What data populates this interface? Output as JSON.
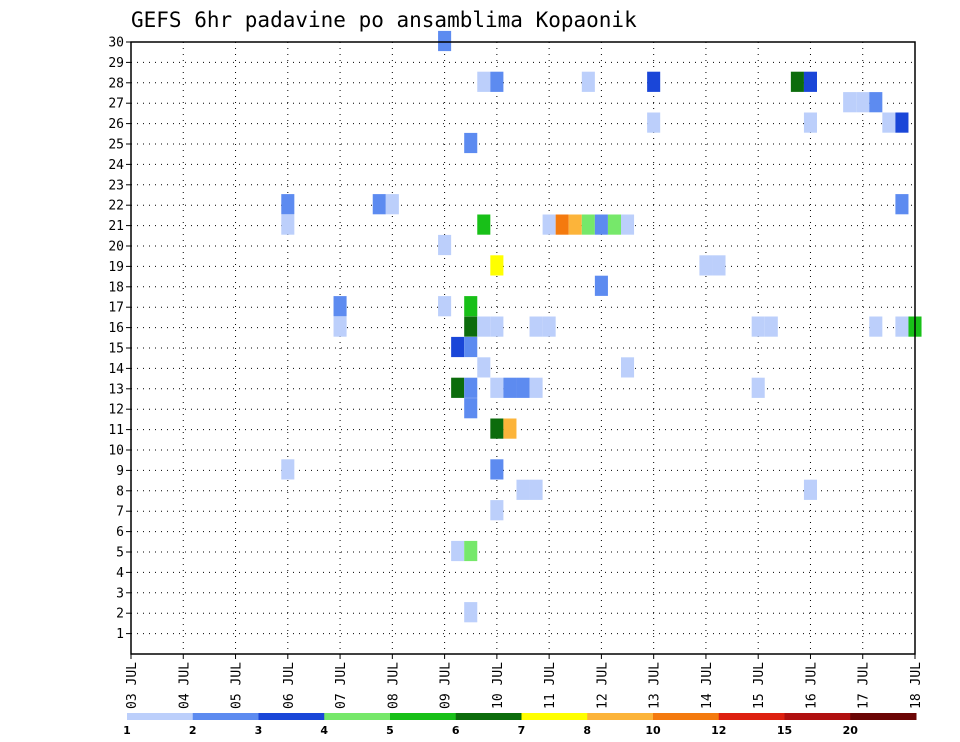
{
  "chart_data": {
    "type": "heatmap",
    "title": "GEFS 6hr padavine po ansamblima Kopaonik",
    "xlabel": "",
    "ylabel": "",
    "x_tick_labels": [
      "03 JUL",
      "04 JUL",
      "05 JUL",
      "06 JUL",
      "07 JUL",
      "08 JUL",
      "09 JUL",
      "10 JUL",
      "11 JUL",
      "12 JUL",
      "13 JUL",
      "14 JUL",
      "15 JUL",
      "16 JUL",
      "17 JUL",
      "18 JUL"
    ],
    "x_range_days": [
      0,
      15
    ],
    "y_tick_labels": [
      "1",
      "2",
      "3",
      "4",
      "5",
      "6",
      "7",
      "8",
      "9",
      "10",
      "11",
      "12",
      "13",
      "14",
      "15",
      "16",
      "17",
      "18",
      "19",
      "20",
      "21",
      "22",
      "23",
      "24",
      "25",
      "26",
      "27",
      "28",
      "29",
      "30"
    ],
    "y_range": [
      0,
      30
    ],
    "grid": true,
    "legend_placement": "bottom",
    "legend_levels": [
      "1",
      "2",
      "3",
      "4",
      "5",
      "6",
      "7",
      "8",
      "10",
      "12",
      "15",
      "20"
    ],
    "legend_colors": [
      "#bccffb",
      "#5d8bf0",
      "#1a46d8",
      "#76e86a",
      "#18c018",
      "#0c6c0c",
      "#ffff00",
      "#fcb43a",
      "#f47a0e",
      "#dd2010",
      "#b01010",
      "#6b0606"
    ],
    "cells": [
      {
        "day": 6.0,
        "member": 30,
        "level": 2
      },
      {
        "day": 6.75,
        "member": 28,
        "level": 1
      },
      {
        "day": 7.0,
        "member": 28,
        "level": 2
      },
      {
        "day": 8.75,
        "member": 28,
        "level": 1
      },
      {
        "day": 10.0,
        "member": 28,
        "level": 3
      },
      {
        "day": 12.75,
        "member": 28,
        "level": 6
      },
      {
        "day": 13.0,
        "member": 28,
        "level": 3
      },
      {
        "day": 13.75,
        "member": 27,
        "level": 1
      },
      {
        "day": 14.0,
        "member": 27,
        "level": 1
      },
      {
        "day": 14.25,
        "member": 27,
        "level": 2
      },
      {
        "day": 10.0,
        "member": 26,
        "level": 1
      },
      {
        "day": 13.0,
        "member": 26,
        "level": 1
      },
      {
        "day": 14.5,
        "member": 26,
        "level": 1
      },
      {
        "day": 14.75,
        "member": 26,
        "level": 3
      },
      {
        "day": 6.5,
        "member": 25,
        "level": 2
      },
      {
        "day": 3.0,
        "member": 22,
        "level": 2
      },
      {
        "day": 4.75,
        "member": 22,
        "level": 2
      },
      {
        "day": 5.0,
        "member": 22,
        "level": 1
      },
      {
        "day": 14.75,
        "member": 22,
        "level": 2
      },
      {
        "day": 3.0,
        "member": 21,
        "level": 1
      },
      {
        "day": 6.75,
        "member": 21,
        "level": 5
      },
      {
        "day": 8.0,
        "member": 21,
        "level": 1
      },
      {
        "day": 8.25,
        "member": 21,
        "level": 9
      },
      {
        "day": 8.5,
        "member": 21,
        "level": 8
      },
      {
        "day": 8.75,
        "member": 21,
        "level": 4
      },
      {
        "day": 9.0,
        "member": 21,
        "level": 2
      },
      {
        "day": 9.25,
        "member": 21,
        "level": 4
      },
      {
        "day": 9.5,
        "member": 21,
        "level": 1
      },
      {
        "day": 6.0,
        "member": 20,
        "level": 1
      },
      {
        "day": 7.0,
        "member": 19,
        "level": 7
      },
      {
        "day": 11.0,
        "member": 19,
        "level": 1
      },
      {
        "day": 11.25,
        "member": 19,
        "level": 1
      },
      {
        "day": 9.0,
        "member": 18,
        "level": 2
      },
      {
        "day": 4.0,
        "member": 17,
        "level": 2
      },
      {
        "day": 6.0,
        "member": 17,
        "level": 1
      },
      {
        "day": 6.5,
        "member": 17,
        "level": 5
      },
      {
        "day": 4.0,
        "member": 16,
        "level": 1
      },
      {
        "day": 6.5,
        "member": 16,
        "level": 6
      },
      {
        "day": 6.75,
        "member": 16,
        "level": 1
      },
      {
        "day": 7.0,
        "member": 16,
        "level": 1
      },
      {
        "day": 7.75,
        "member": 16,
        "level": 1
      },
      {
        "day": 8.0,
        "member": 16,
        "level": 1
      },
      {
        "day": 12.0,
        "member": 16,
        "level": 1
      },
      {
        "day": 12.25,
        "member": 16,
        "level": 1
      },
      {
        "day": 14.25,
        "member": 16,
        "level": 1
      },
      {
        "day": 14.75,
        "member": 16,
        "level": 1
      },
      {
        "day": 15.0,
        "member": 16,
        "level": 5
      },
      {
        "day": 6.25,
        "member": 15,
        "level": 3
      },
      {
        "day": 6.5,
        "member": 15,
        "level": 2
      },
      {
        "day": 6.75,
        "member": 14,
        "level": 1
      },
      {
        "day": 9.5,
        "member": 14,
        "level": 1
      },
      {
        "day": 6.25,
        "member": 13,
        "level": 6
      },
      {
        "day": 6.5,
        "member": 13,
        "level": 2
      },
      {
        "day": 7.0,
        "member": 13,
        "level": 1
      },
      {
        "day": 7.25,
        "member": 13,
        "level": 2
      },
      {
        "day": 7.5,
        "member": 13,
        "level": 2
      },
      {
        "day": 7.75,
        "member": 13,
        "level": 1
      },
      {
        "day": 12.0,
        "member": 13,
        "level": 1
      },
      {
        "day": 6.5,
        "member": 12,
        "level": 2
      },
      {
        "day": 7.0,
        "member": 11,
        "level": 6
      },
      {
        "day": 7.25,
        "member": 11,
        "level": 8
      },
      {
        "day": 3.0,
        "member": 9,
        "level": 1
      },
      {
        "day": 7.0,
        "member": 9,
        "level": 2
      },
      {
        "day": 7.5,
        "member": 8,
        "level": 1
      },
      {
        "day": 7.75,
        "member": 8,
        "level": 1
      },
      {
        "day": 13.0,
        "member": 8,
        "level": 1
      },
      {
        "day": 7.0,
        "member": 7,
        "level": 1
      },
      {
        "day": 6.25,
        "member": 5,
        "level": 1
      },
      {
        "day": 6.5,
        "member": 5,
        "level": 4
      },
      {
        "day": 6.5,
        "member": 2,
        "level": 1
      }
    ]
  }
}
